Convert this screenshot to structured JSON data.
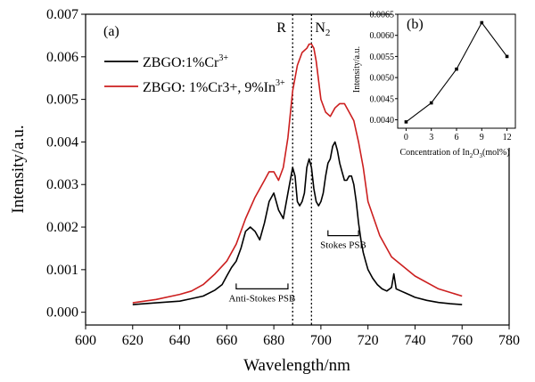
{
  "chart_data": [
    {
      "type": "line",
      "panel_label": "(a)",
      "xlabel": "Wavelength/nm",
      "ylabel": "Intensity/a.u.",
      "xlim": [
        600,
        780
      ],
      "ylim": [
        -0.0003,
        0.007
      ],
      "x_ticks": [
        "600",
        "620",
        "640",
        "660",
        "680",
        "700",
        "720",
        "740",
        "760",
        "780"
      ],
      "y_ticks": [
        "0.000",
        "0.001",
        "0.002",
        "0.003",
        "0.004",
        "0.005",
        "0.006",
        "0.007"
      ],
      "legend_position": "top-left",
      "series": [
        {
          "name_base": "ZBGO:1%Cr",
          "name_sup": "3+",
          "color": "#000000",
          "x": [
            620,
            630,
            640,
            645,
            650,
            655,
            658,
            660,
            662,
            664,
            666,
            668,
            670,
            672,
            674,
            676,
            678,
            680,
            682,
            684,
            686,
            688,
            689,
            690,
            691,
            692,
            693,
            694,
            695,
            696,
            697,
            698,
            699,
            700,
            701,
            702,
            703,
            704,
            705,
            706,
            707,
            708,
            709,
            710,
            711,
            712,
            713,
            714,
            715,
            716,
            717,
            718,
            719,
            720,
            722,
            724,
            726,
            728,
            730,
            731,
            732,
            734,
            736,
            738,
            740,
            745,
            750,
            755,
            760
          ],
          "values": [
            0.00018,
            0.00022,
            0.00026,
            0.00032,
            0.00038,
            0.00052,
            0.00065,
            0.00085,
            0.00105,
            0.0012,
            0.0015,
            0.0019,
            0.002,
            0.0019,
            0.0017,
            0.0021,
            0.0026,
            0.0028,
            0.0024,
            0.0022,
            0.0028,
            0.0034,
            0.0032,
            0.0026,
            0.0025,
            0.0026,
            0.0028,
            0.0034,
            0.0036,
            0.0034,
            0.0029,
            0.0026,
            0.0025,
            0.0026,
            0.0028,
            0.0032,
            0.0035,
            0.0036,
            0.0039,
            0.004,
            0.0038,
            0.0035,
            0.0033,
            0.0031,
            0.0031,
            0.0032,
            0.0032,
            0.003,
            0.0026,
            0.0021,
            0.0017,
            0.0014,
            0.0012,
            0.001,
            0.0008,
            0.00065,
            0.00055,
            0.0005,
            0.00058,
            0.0009,
            0.00055,
            0.0005,
            0.00045,
            0.0004,
            0.00035,
            0.00028,
            0.00023,
            0.0002,
            0.00018
          ]
        },
        {
          "name_base": "ZBGO: 1%Cr3+, 9%In",
          "name_sup": "3+",
          "color": "#cc1f1f",
          "x": [
            620,
            630,
            640,
            645,
            650,
            655,
            660,
            664,
            668,
            672,
            676,
            678,
            680,
            682,
            684,
            686,
            688,
            690,
            692,
            694,
            695,
            696,
            697,
            698,
            700,
            702,
            704,
            706,
            708,
            710,
            712,
            714,
            716,
            718,
            720,
            725,
            730,
            740,
            750,
            760
          ],
          "values": [
            0.00022,
            0.0003,
            0.00042,
            0.0005,
            0.00065,
            0.0009,
            0.0012,
            0.0016,
            0.0022,
            0.0027,
            0.0031,
            0.0033,
            0.0033,
            0.0031,
            0.0034,
            0.0041,
            0.0052,
            0.0058,
            0.0061,
            0.0062,
            0.0063,
            0.0063,
            0.0062,
            0.0059,
            0.005,
            0.0047,
            0.0046,
            0.0048,
            0.0049,
            0.0049,
            0.0047,
            0.0045,
            0.004,
            0.0034,
            0.0026,
            0.0018,
            0.0013,
            0.00085,
            0.00055,
            0.00038
          ]
        }
      ],
      "reference_lines": [
        {
          "x": 688,
          "label": "R",
          "label_sub": ""
        },
        {
          "x": 696,
          "label": "N",
          "label_sub": "2"
        }
      ],
      "annotations": [
        {
          "text": "Anti-Stokes PSB",
          "x_from": 664,
          "x_to": 686,
          "y": 0.00055
        },
        {
          "text": "Stokes PSB",
          "x_from": 703,
          "x_to": 716,
          "y": 0.0018
        }
      ]
    },
    {
      "type": "line",
      "panel_label": "(b)",
      "xlabel_base": "Concentration of In",
      "xlabel_sub": "2",
      "xlabel_mid": "O",
      "xlabel_sub2": "3",
      "xlabel_end": "(mol%)",
      "ylabel": "Intensity/a.u.",
      "xlim": [
        -1,
        13
      ],
      "ylim": [
        0.0038,
        0.0065
      ],
      "x_ticks": [
        "0",
        "3",
        "6",
        "9",
        "12"
      ],
      "y_ticks": [
        "0.0040",
        "0.0045",
        "0.0050",
        "0.0055",
        "0.0060",
        "0.0065"
      ],
      "x": [
        0,
        3,
        6,
        9,
        12
      ],
      "values": [
        0.00395,
        0.0044,
        0.0052,
        0.0063,
        0.0055
      ],
      "color": "#000000"
    }
  ]
}
